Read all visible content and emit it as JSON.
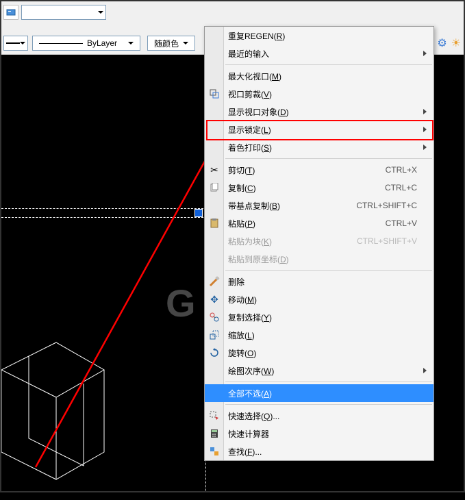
{
  "toolbar": {
    "layer_dropdown_value": "",
    "linetype_value": "ByLayer",
    "color_dropdown": "随颜色",
    "settings_icon": "gear-icon",
    "sun_icon": "sun-icon"
  },
  "watermark_text": "G",
  "context_menu": {
    "items": [
      {
        "label": "重复REGEN(R)",
        "key": "R"
      },
      {
        "label": "最近的输入",
        "submenu": true
      },
      {
        "sep": true
      },
      {
        "label": "最大化视口(M)",
        "key": "M"
      },
      {
        "label": "视口剪裁(V)",
        "key": "V",
        "icon": "clip-icon"
      },
      {
        "label": "显示视口对象(D)",
        "key": "D",
        "submenu": true
      },
      {
        "label": "显示锁定(L)",
        "key": "L",
        "submenu": true,
        "red_highlight": true
      },
      {
        "label": "着色打印(S)",
        "key": "S",
        "submenu": true
      },
      {
        "sep": true
      },
      {
        "label": "剪切(T)",
        "key": "T",
        "icon": "cut-icon",
        "shortcut": "CTRL+X"
      },
      {
        "label": "复制(C)",
        "key": "C",
        "icon": "copy-icon",
        "shortcut": "CTRL+C"
      },
      {
        "label": "带基点复制(B)",
        "key": "B",
        "shortcut": "CTRL+SHIFT+C"
      },
      {
        "label": "粘贴(P)",
        "key": "P",
        "icon": "paste-icon",
        "shortcut": "CTRL+V"
      },
      {
        "label": "粘贴为块(K)",
        "key": "K",
        "shortcut": "CTRL+SHIFT+V",
        "disabled": true
      },
      {
        "label": "粘贴到原坐标(D)",
        "key": "D",
        "disabled": true
      },
      {
        "sep": true
      },
      {
        "label": "删除",
        "icon": "erase-icon"
      },
      {
        "label": "移动(M)",
        "key": "M",
        "icon": "move-icon"
      },
      {
        "label": "复制选择(Y)",
        "key": "Y",
        "icon": "copysel-icon"
      },
      {
        "label": "缩放(L)",
        "key": "L",
        "icon": "scale-icon"
      },
      {
        "label": "旋转(O)",
        "key": "O",
        "icon": "rotate-icon"
      },
      {
        "label": "绘图次序(W)",
        "key": "W",
        "submenu": true
      },
      {
        "sep": true
      },
      {
        "label": "全部不选(A)",
        "key": "A",
        "highlighted": true
      },
      {
        "sep": true
      },
      {
        "label": "快速选择(Q)...",
        "key": "Q",
        "icon": "qselect-icon"
      },
      {
        "label": "快速计算器",
        "icon": "calc-icon"
      },
      {
        "label": "查找(F)...",
        "key": "F",
        "icon": "find-icon"
      }
    ]
  },
  "colors": {
    "menu_bg": "#f4f4f4",
    "highlight": "#2e8eff",
    "red": "#ff0000",
    "canvas_bg": "#000000"
  }
}
